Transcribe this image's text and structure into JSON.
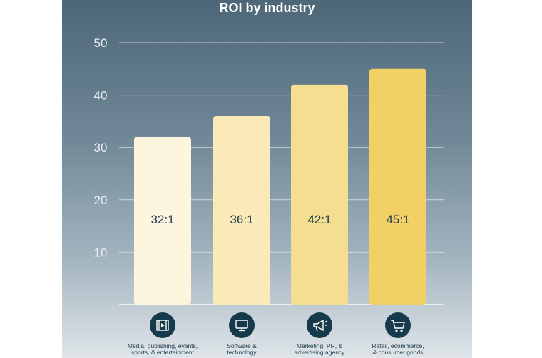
{
  "chart_data": {
    "type": "bar",
    "title": "ROI by industry",
    "xlabel": "",
    "ylabel": "",
    "ylim": [
      0,
      50
    ],
    "yticks": [
      10,
      20,
      30,
      40,
      50
    ],
    "grid": true,
    "categories": [
      [
        "Media, publishing, events,",
        "sports, & entertainment"
      ],
      [
        "Software &",
        "technology"
      ],
      [
        "Marketing, PR, &",
        "advertising agency"
      ],
      [
        "Retail, ecommerce,",
        "& consumer goods"
      ]
    ],
    "values": [
      32,
      36,
      42,
      45
    ],
    "data_labels": [
      "32:1",
      "36:1",
      "42:1",
      "45:1"
    ],
    "bar_colors": [
      "#fdf5dd",
      "#f9eab8",
      "#f5de8f",
      "#f1d066"
    ],
    "icons": [
      "film-icon",
      "monitor-icon",
      "megaphone-icon",
      "cart-icon"
    ]
  }
}
